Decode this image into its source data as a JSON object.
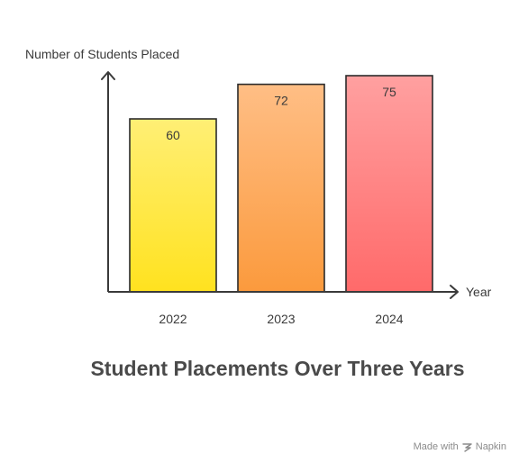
{
  "chart_data": {
    "type": "bar",
    "title": "Student Placements Over Three Years",
    "xlabel": "Year",
    "ylabel": "Number of Students Placed",
    "categories": [
      "2022",
      "2023",
      "2024"
    ],
    "values": [
      60,
      72,
      75
    ],
    "ylim": [
      0,
      75
    ],
    "grid": false,
    "legend": "none"
  },
  "colors": {
    "bar_2022_top": "#FFEF75",
    "bar_2022_bottom": "#FFE21F",
    "bar_2023_top": "#FFBE85",
    "bar_2023_bottom": "#FB9A3D",
    "bar_2024_top": "#FFA0A0",
    "bar_2024_bottom": "#FF6A6A",
    "bar_stroke": "#2b2b2b",
    "axis": "#3a3a3a",
    "text": "#3a3a3a"
  },
  "watermark": {
    "text": "Made with",
    "brand": "Napkin",
    "icon": "napkin-logo-icon"
  }
}
